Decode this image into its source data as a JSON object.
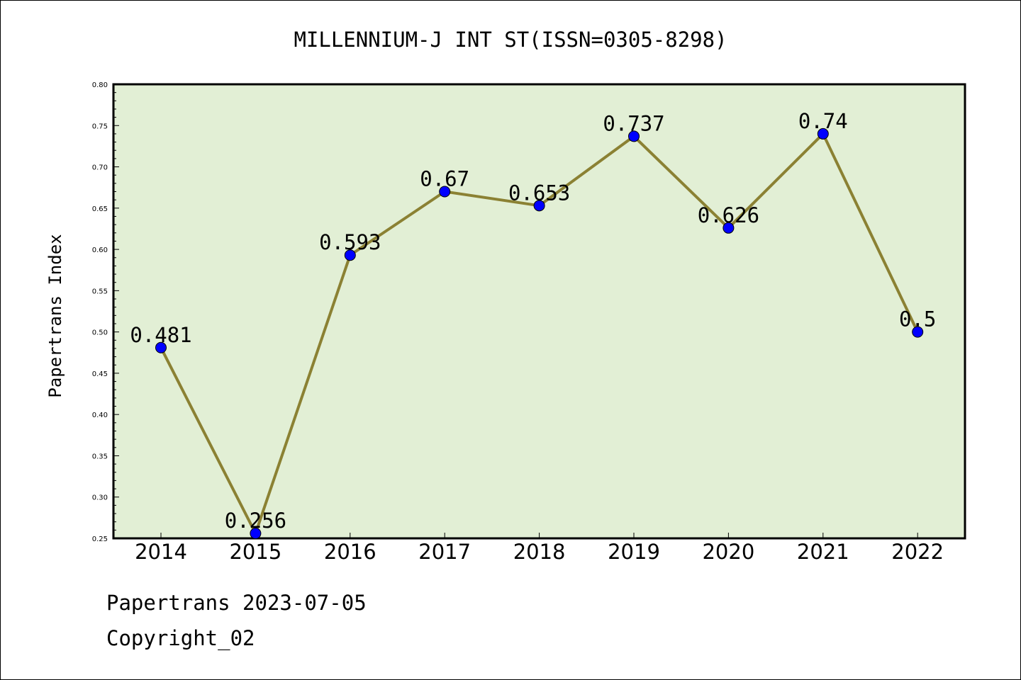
{
  "chart_data": {
    "type": "line",
    "title": "MILLENNIUM-J INT ST(ISSN=0305-8298)",
    "xlabel": "",
    "ylabel": "Papertrans Index",
    "categories": [
      "2014",
      "2015",
      "2016",
      "2017",
      "2018",
      "2019",
      "2020",
      "2021",
      "2022"
    ],
    "series": [
      {
        "values": [
          0.481,
          0.256,
          0.593,
          0.67,
          0.653,
          0.737,
          0.626,
          0.74,
          0.5
        ],
        "data_labels": [
          "0.481",
          "0.256",
          "0.593",
          "0.67",
          "0.653",
          "0.737",
          "0.626",
          "0.74",
          "0.5"
        ]
      }
    ],
    "ylim": [
      0.25,
      0.8
    ],
    "yticks": [
      "0.25",
      "0.30",
      "0.35",
      "0.40",
      "0.45",
      "0.50",
      "0.55",
      "0.60",
      "0.65",
      "0.70",
      "0.75",
      "0.80"
    ],
    "grid": false,
    "legend": "none",
    "colors": {
      "plot_background": "#e2efd5",
      "line": "#8b8133",
      "marker": "#0000ff"
    }
  },
  "footer": {
    "line1": "Papertrans 2023-07-05",
    "line2": "Copyright_02"
  }
}
